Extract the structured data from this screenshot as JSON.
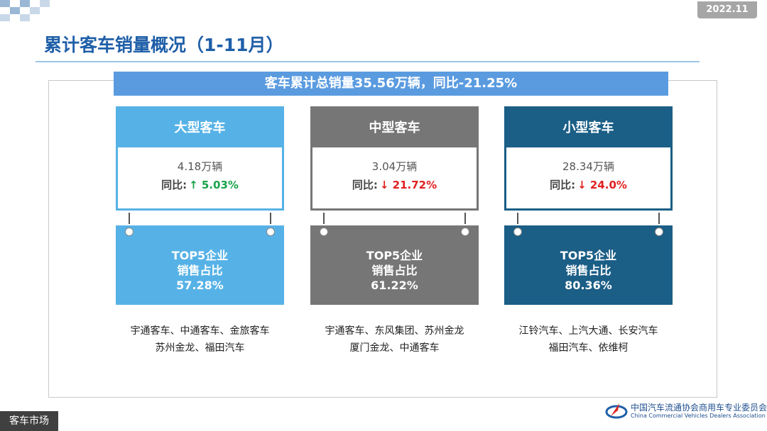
{
  "header": {
    "date": "2022.11",
    "title": "累计客车销量概况（1-11月）"
  },
  "banner": "客车累计总销量35.56万辆，同比-21.25%",
  "cards": [
    {
      "name": "大型客车",
      "sales": "4.18万辆",
      "yoy_label": "同比:",
      "yoy": "↑ 5.03%",
      "trend": "up",
      "color": "#56b2e6",
      "top5_label": "TOP5企业",
      "share_label": "销售占比",
      "share": "57.28%",
      "companies": [
        "宇通客车、中通客车、金旅客车",
        "苏州金龙、福田汽车"
      ]
    },
    {
      "name": "中型客车",
      "sales": "3.04万辆",
      "yoy_label": "同比:",
      "yoy": "↓ 21.72%",
      "trend": "down",
      "color": "#767676",
      "top5_label": "TOP5企业",
      "share_label": "销售占比",
      "share": "61.22%",
      "companies": [
        "宇通客车、东风集团、苏州金龙",
        "厦门金龙、中通客车"
      ]
    },
    {
      "name": "小型客车",
      "sales": "28.34万辆",
      "yoy_label": "同比:",
      "yoy": "↓ 24.0%",
      "trend": "down",
      "color": "#1b5e86",
      "top5_label": "TOP5企业",
      "share_label": "销售占比",
      "share": "80.36%",
      "companies": [
        "江铃汽车、上汽大通、长安汽车",
        "福田汽车、依维柯"
      ]
    }
  ],
  "footer": {
    "section": "客车市场",
    "org_cn": "中国汽车流通协会商用车专业委员会",
    "org_en": "China Commercial Vehicles Dealers Association"
  }
}
